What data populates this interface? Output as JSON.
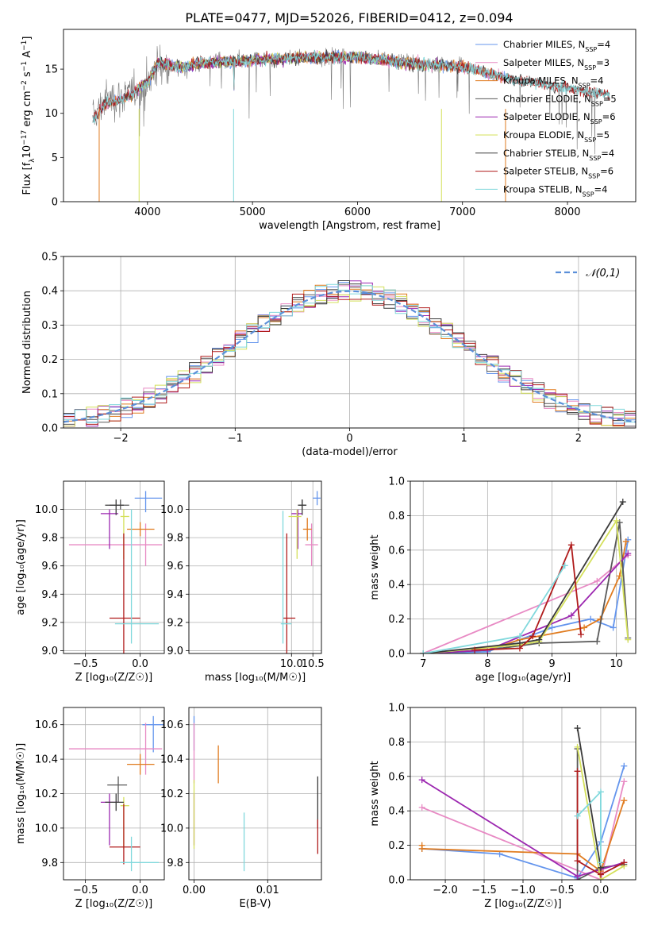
{
  "title": "PLATE=0477, MJD=52026, FIBERID=0412, z=0.094",
  "colors": {
    "Chabrier MILES": "#6495ed",
    "Salpeter MILES": "#e88ac4",
    "Kroupa MILES": "#e07b1f",
    "Chabrier ELODIE": "#595959",
    "Salpeter ELODIE": "#9c27b0",
    "Kroupa ELODIE": "#d4e05a",
    "Chabrier STELIB": "#3a3a3a",
    "Salpeter STELIB": "#b01c1c",
    "Kroupa STELIB": "#80d8dc",
    "norm": "#5b8fd9"
  },
  "chart_data": [
    {
      "id": "spectrum",
      "type": "line",
      "title": "PLATE=0477, MJD=52026, FIBERID=0412, z=0.094",
      "xlabel": "wavelength [Angstrom, rest frame]",
      "ylabel_parts": [
        "Flux [f",
        "λ",
        "10",
        "−17",
        " erg cm",
        "−2",
        " s",
        "−1",
        " A",
        "−1",
        "]"
      ],
      "xlim": [
        3200,
        8650
      ],
      "ylim": [
        0,
        19.5
      ],
      "xticks": [
        4000,
        5000,
        6000,
        7000,
        8000
      ],
      "yticks": [
        0,
        5,
        10,
        15
      ],
      "grid": false,
      "legend_position": "upper-right",
      "series": [
        {
          "name": "Chabrier MILES",
          "nssp": "4"
        },
        {
          "name": "Salpeter MILES",
          "nssp": "3"
        },
        {
          "name": "Kroupa MILES",
          "nssp": "4"
        },
        {
          "name": "Chabrier ELODIE",
          "nssp": "5"
        },
        {
          "name": "Salpeter ELODIE",
          "nssp": "6"
        },
        {
          "name": "Kroupa ELODIE",
          "nssp": "5"
        },
        {
          "name": "Chabrier STELIB",
          "nssp": "4"
        },
        {
          "name": "Salpeter STELIB",
          "nssp": "6"
        },
        {
          "name": "Kroupa STELIB",
          "nssp": "4"
        }
      ],
      "observed_envelope": {
        "x": [
          3480,
          3600,
          3800,
          4000,
          4100,
          4300,
          4600,
          5000,
          5500,
          6000,
          6500,
          7000,
          7500,
          8000,
          8400
        ],
        "y": [
          9.5,
          11.5,
          12.0,
          13.5,
          15.5,
          15.0,
          15.8,
          16.0,
          16.3,
          16.5,
          15.8,
          15.5,
          14.0,
          13.0,
          12.2
        ]
      },
      "model_envelope": {
        "x": [
          3480,
          3600,
          3800,
          4000,
          4100,
          4300,
          4600,
          5000,
          5500,
          6000,
          6500,
          7000,
          7500,
          8000,
          8400
        ],
        "y": [
          9.2,
          11.0,
          11.8,
          13.5,
          15.8,
          15.2,
          15.8,
          16.0,
          16.3,
          16.4,
          15.6,
          15.3,
          13.8,
          12.8,
          12.1
        ]
      }
    },
    {
      "id": "residuals",
      "type": "step",
      "xlabel": "(data-model)/error",
      "ylabel": "Normed distribution",
      "xlim": [
        -2.5,
        2.5
      ],
      "ylim": [
        0,
        0.5
      ],
      "xticks": [
        -2,
        -1,
        0,
        1,
        2
      ],
      "yticks": [
        0.0,
        0.1,
        0.2,
        0.3,
        0.4,
        0.5
      ],
      "grid": true,
      "legend_position": "upper-right",
      "legend_label": "𝒩(0,1)",
      "bin_width": 0.1
    },
    {
      "id": "age-vs-Z",
      "type": "errorbar",
      "xlabel": "Z [log₁₀(Z/Z☉)]",
      "ylabel": "age  [log₁₀(age/yr)]",
      "xlim": [
        -0.7,
        0.22
      ],
      "ylim": [
        8.98,
        10.2
      ],
      "xticks": [
        -0.5,
        0.0
      ],
      "yticks": [
        9.0,
        9.2,
        9.4,
        9.6,
        9.8,
        10.0
      ],
      "grid": true,
      "points": [
        {
          "series": "Chabrier MILES",
          "x": 0.05,
          "xerr": [
            0.1,
            0.15
          ],
          "y": 10.08,
          "yerr": [
            0.1,
            0.05
          ]
        },
        {
          "series": "Salpeter MILES",
          "x": 0.05,
          "xerr": [
            0.7,
            0.15
          ],
          "y": 9.75,
          "yerr": [
            0.15,
            0.15
          ]
        },
        {
          "series": "Kroupa MILES",
          "x": 0.0,
          "xerr": [
            0.12,
            0.13
          ],
          "y": 9.86,
          "yerr": [
            0.05,
            0.05
          ]
        },
        {
          "series": "Chabrier ELODIE",
          "x": -0.18,
          "xerr": [
            0.1,
            0.08
          ],
          "y": 10.03,
          "yerr": [
            0.03,
            0.04
          ]
        },
        {
          "series": "Salpeter ELODIE",
          "x": -0.28,
          "xerr": [
            0.08,
            0.08
          ],
          "y": 9.97,
          "yerr": [
            0.25,
            0.03
          ]
        },
        {
          "series": "Kroupa ELODIE",
          "x": -0.15,
          "xerr": [
            0.03,
            0.05
          ],
          "y": 9.95,
          "yerr": [
            0.3,
            0.05
          ]
        },
        {
          "series": "Chabrier STELIB",
          "x": -0.22,
          "xerr": [
            0.1,
            0.07
          ],
          "y": 10.03,
          "yerr": [
            0.07,
            0.04
          ]
        },
        {
          "series": "Salpeter STELIB",
          "x": -0.15,
          "xerr": [
            0.13,
            0.15
          ],
          "y": 9.23,
          "yerr": [
            0.4,
            0.6
          ]
        },
        {
          "series": "Kroupa STELIB",
          "x": -0.08,
          "xerr": [
            0.15,
            0.25
          ],
          "y": 9.19,
          "yerr": [
            0.14,
            0.81
          ]
        }
      ]
    },
    {
      "id": "age-vs-mass",
      "type": "errorbar",
      "xlabel": "mass [log₁₀(M/M☉)]",
      "ylabel": "",
      "xlim": [
        7.6,
        10.7
      ],
      "ylim": [
        8.98,
        10.2
      ],
      "xticks": [
        10.0,
        10.5
      ],
      "yticks": [
        9.0,
        9.2,
        9.4,
        9.6,
        9.8,
        10.0
      ],
      "grid": true,
      "points": [
        {
          "series": "Chabrier MILES",
          "x": 10.6,
          "xerr": [
            0.1,
            0.08
          ],
          "y": 10.08,
          "yerr": [
            0.05,
            0.05
          ]
        },
        {
          "series": "Salpeter MILES",
          "x": 10.47,
          "xerr": [
            0.15,
            0.15
          ],
          "y": 9.75,
          "yerr": [
            0.15,
            0.15
          ]
        },
        {
          "series": "Kroupa MILES",
          "x": 10.37,
          "xerr": [
            0.1,
            0.1
          ],
          "y": 9.86,
          "yerr": [
            0.08,
            0.08
          ]
        },
        {
          "series": "Chabrier ELODIE",
          "x": 10.25,
          "xerr": [
            0.08,
            0.08
          ],
          "y": 10.03,
          "yerr": [
            0.03,
            0.04
          ]
        },
        {
          "series": "Salpeter ELODIE",
          "x": 10.15,
          "xerr": [
            0.15,
            0.1
          ],
          "y": 9.97,
          "yerr": [
            0.25,
            0.03
          ]
        },
        {
          "series": "Kroupa ELODIE",
          "x": 10.13,
          "xerr": [
            0.2,
            0.1
          ],
          "y": 9.95,
          "yerr": [
            0.3,
            0.05
          ]
        },
        {
          "series": "Chabrier STELIB",
          "x": 10.25,
          "xerr": [
            0.1,
            0.1
          ],
          "y": 10.03,
          "yerr": [
            0.07,
            0.04
          ]
        },
        {
          "series": "Salpeter STELIB",
          "x": 9.89,
          "xerr": [
            0.1,
            0.2
          ],
          "y": 9.23,
          "yerr": [
            0.4,
            0.6
          ]
        },
        {
          "series": "Kroupa STELIB",
          "x": 9.8,
          "xerr": [
            0.05,
            0.2
          ],
          "y": 9.19,
          "yerr": [
            0.14,
            0.8
          ]
        }
      ]
    },
    {
      "id": "weight-vs-age",
      "type": "line",
      "xlabel": "age  [log₁₀(age/yr)]",
      "ylabel": "mass weight",
      "xlim": [
        6.8,
        10.3
      ],
      "ylim": [
        0,
        1.0
      ],
      "xticks": [
        7,
        8,
        9,
        10
      ],
      "yticks": [
        0.0,
        0.2,
        0.4,
        0.6,
        0.8,
        1.0
      ],
      "grid": true,
      "series": [
        {
          "name": "Chabrier MILES",
          "x": [
            7.0,
            8.0,
            9.0,
            9.6,
            9.95,
            10.18
          ],
          "y": [
            0.0,
            0.01,
            0.15,
            0.2,
            0.15,
            0.66
          ]
        },
        {
          "name": "Salpeter MILES",
          "x": [
            7.0,
            9.7,
            10.18
          ],
          "y": [
            0.0,
            0.42,
            0.57
          ]
        },
        {
          "name": "Kroupa MILES",
          "x": [
            7.0,
            8.0,
            8.5,
            9.5,
            9.75,
            10.05,
            10.15
          ],
          "y": [
            0.0,
            0.02,
            0.08,
            0.15,
            0.2,
            0.45,
            0.65
          ]
        },
        {
          "name": "Chabrier ELODIE",
          "x": [
            7.0,
            8.0,
            8.8,
            9.7,
            10.05,
            10.18
          ],
          "y": [
            0.0,
            0.02,
            0.06,
            0.07,
            0.76,
            0.09
          ]
        },
        {
          "name": "Salpeter ELODIE",
          "x": [
            7.0,
            8.0,
            9.3,
            10.18
          ],
          "y": [
            0.0,
            0.02,
            0.22,
            0.58
          ]
        },
        {
          "name": "Kroupa ELODIE",
          "x": [
            7.0,
            8.5,
            8.8,
            10.0,
            10.18
          ],
          "y": [
            0.0,
            0.05,
            0.07,
            0.77,
            0.08
          ]
        },
        {
          "name": "Chabrier STELIB",
          "x": [
            7.0,
            8.5,
            8.8,
            10.1
          ],
          "y": [
            0.0,
            0.06,
            0.08,
            0.88
          ]
        },
        {
          "name": "Salpeter STELIB",
          "x": [
            7.8,
            8.5,
            8.7,
            9.3,
            9.45
          ],
          "y": [
            0.02,
            0.03,
            0.1,
            0.63,
            0.11
          ]
        },
        {
          "name": "Kroupa STELIB",
          "x": [
            7.0,
            8.5,
            9.2
          ],
          "y": [
            0.0,
            0.1,
            0.51
          ]
        }
      ]
    },
    {
      "id": "mass-vs-Z",
      "type": "errorbar",
      "xlabel": "Z [log₁₀(Z/Z☉)]",
      "ylabel": "mass [log₁₀(M/M☉)]",
      "xlim": [
        -0.7,
        0.22
      ],
      "ylim": [
        9.7,
        10.7
      ],
      "xticks": [
        -0.5,
        0.0
      ],
      "yticks": [
        9.8,
        10.0,
        10.2,
        10.4,
        10.6
      ],
      "grid": true,
      "points": [
        {
          "series": "Chabrier MILES",
          "x": 0.12,
          "xerr": [
            0.1,
            0.1
          ],
          "y": 10.6,
          "yerr": [
            0.16,
            0.05
          ]
        },
        {
          "series": "Salpeter MILES",
          "x": 0.05,
          "xerr": [
            0.7,
            0.15
          ],
          "y": 10.46,
          "yerr": [
            0.15,
            0.15
          ]
        },
        {
          "series": "Kroupa MILES",
          "x": 0.0,
          "xerr": [
            0.12,
            0.13
          ],
          "y": 10.37,
          "yerr": [
            0.06,
            0.06
          ]
        },
        {
          "series": "Chabrier ELODIE",
          "x": -0.2,
          "xerr": [
            0.1,
            0.08
          ],
          "y": 10.25,
          "yerr": [
            0.1,
            0.05
          ]
        },
        {
          "series": "Salpeter ELODIE",
          "x": -0.28,
          "xerr": [
            0.08,
            0.08
          ],
          "y": 10.15,
          "yerr": [
            0.25,
            0.05
          ]
        },
        {
          "series": "Kroupa ELODIE",
          "x": -0.15,
          "xerr": [
            0.03,
            0.05
          ],
          "y": 10.13,
          "yerr": [
            0.25,
            0.05
          ]
        },
        {
          "series": "Chabrier STELIB",
          "x": -0.22,
          "xerr": [
            0.1,
            0.07
          ],
          "y": 10.15,
          "yerr": [
            0.05,
            0.05
          ]
        },
        {
          "series": "Salpeter STELIB",
          "x": -0.15,
          "xerr": [
            0.13,
            0.15
          ],
          "y": 9.89,
          "yerr": [
            0.1,
            0.25
          ]
        },
        {
          "series": "Kroupa STELIB",
          "x": -0.08,
          "xerr": [
            0.1,
            0.25
          ],
          "y": 9.8,
          "yerr": [
            0.05,
            0.15
          ]
        }
      ]
    },
    {
      "id": "mass-vs-EBV",
      "type": "errorbar",
      "xlabel": "E(B-V)",
      "ylabel": "",
      "xlim": [
        -0.0007,
        0.0173
      ],
      "ylim": [
        9.7,
        10.7
      ],
      "xticks": [
        0.0,
        0.01
      ],
      "xticklabels": [
        "0.00",
        "0.01"
      ],
      "yticks": [
        9.8,
        10.0,
        10.2,
        10.4,
        10.6
      ],
      "grid": true,
      "points": [
        {
          "series": "Chabrier MILES",
          "x": 0.0,
          "xerr": [
            0,
            0
          ],
          "y": 10.6,
          "yerr": [
            0.15,
            0.05
          ]
        },
        {
          "series": "Salpeter MILES",
          "x": 0.0,
          "xerr": [
            0,
            0
          ],
          "y": 10.46,
          "yerr": [
            0.2,
            0.15
          ]
        },
        {
          "series": "Kroupa MILES",
          "x": 0.0033,
          "xerr": [
            0,
            0
          ],
          "y": 10.37,
          "yerr": [
            0.11,
            0.11
          ]
        },
        {
          "series": "Salpeter ELODIE",
          "x": 0.0,
          "xerr": [
            0,
            0
          ],
          "y": 10.15,
          "yerr": [
            0.25,
            0.05
          ]
        },
        {
          "series": "Kroupa ELODIE",
          "x": 0.0,
          "xerr": [
            0,
            0
          ],
          "y": 10.13,
          "yerr": [
            0.25,
            0.15
          ]
        },
        {
          "series": "Chabrier STELIB",
          "x": 0.0168,
          "xerr": [
            0,
            0
          ],
          "y": 10.15,
          "yerr": [
            0.15,
            0.15
          ]
        },
        {
          "series": "Salpeter STELIB",
          "x": 0.0168,
          "xerr": [
            0,
            0
          ],
          "y": 9.95,
          "yerr": [
            0.1,
            0.1
          ]
        },
        {
          "series": "Kroupa STELIB",
          "x": 0.0068,
          "xerr": [
            0,
            0
          ],
          "y": 9.91,
          "yerr": [
            0.16,
            0.18
          ]
        }
      ]
    },
    {
      "id": "weight-vs-Z",
      "type": "line",
      "xlabel": "Z [log₁₀(Z/Z☉)]",
      "ylabel": "mass weight",
      "xlim": [
        -2.45,
        0.45
      ],
      "ylim": [
        0,
        1.0
      ],
      "xticks": [
        -2.0,
        -1.5,
        -1.0,
        -0.5,
        0.0
      ],
      "yticks": [
        0.0,
        0.2,
        0.4,
        0.6,
        0.8,
        1.0
      ],
      "grid": true,
      "series": [
        {
          "name": "Chabrier MILES",
          "x": [
            -2.3,
            -1.3,
            -0.3,
            0.0,
            0.3
          ],
          "y": [
            0.18,
            0.15,
            0.01,
            0.22,
            0.66
          ]
        },
        {
          "name": "Salpeter MILES",
          "x": [
            -2.3,
            0.0,
            0.3
          ],
          "y": [
            0.42,
            0.0,
            0.57
          ]
        },
        {
          "name": "Kroupa MILES",
          "x": [
            -2.3,
            -2.3,
            -0.3,
            0.0,
            0.3
          ],
          "y": [
            0.2,
            0.18,
            0.15,
            0.05,
            0.46
          ]
        },
        {
          "name": "Chabrier ELODIE",
          "x": [
            -0.3,
            -0.3,
            0.0,
            0.3
          ],
          "y": [
            0.76,
            0.0,
            0.07,
            0.09
          ]
        },
        {
          "name": "Salpeter ELODIE",
          "x": [
            -2.3,
            -0.3,
            0.3
          ],
          "y": [
            0.58,
            0.02,
            0.1
          ]
        },
        {
          "name": "Kroupa ELODIE",
          "x": [
            -0.3,
            0.0,
            0.3
          ],
          "y": [
            0.77,
            0.0,
            0.08
          ]
        },
        {
          "name": "Chabrier STELIB",
          "x": [
            -0.3,
            0.0
          ],
          "y": [
            0.88,
            0.07
          ]
        },
        {
          "name": "Salpeter STELIB",
          "x": [
            -0.3,
            -0.3,
            0.0,
            0.3
          ],
          "y": [
            0.63,
            0.11,
            0.03,
            0.1
          ]
        },
        {
          "name": "Kroupa STELIB",
          "x": [
            -0.3,
            0.0,
            0.0
          ],
          "y": [
            0.37,
            0.51,
            0.1
          ]
        }
      ]
    }
  ]
}
